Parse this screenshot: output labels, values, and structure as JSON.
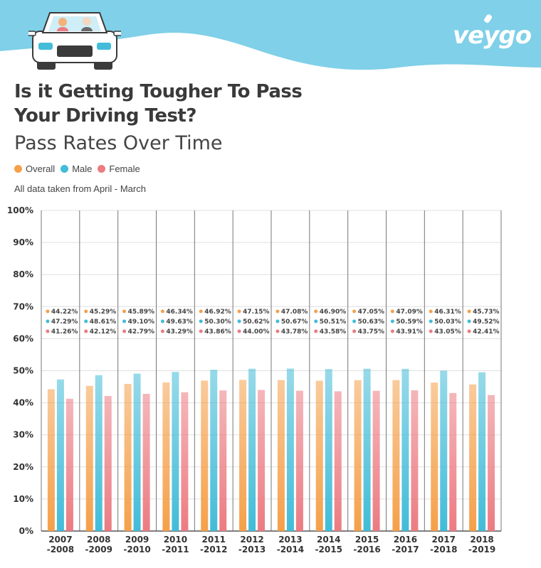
{
  "brand": {
    "logo_text": "veygo"
  },
  "header": {
    "title_line1": "Is it Getting Tougher To Pass",
    "title_line2": "Your Driving Test?",
    "subtitle": "Pass Rates Over Time",
    "note": "All data taken from April - March"
  },
  "legend": [
    {
      "label": "Overall",
      "color": "#f5a04a"
    },
    {
      "label": "Male",
      "color": "#42bcd8"
    },
    {
      "label": "Female",
      "color": "#ec7b82"
    }
  ],
  "colors": {
    "header_wave": "#7fd0e8",
    "header_wave_light": "#a6e0f0",
    "overall": "#f5a04a",
    "male": "#42bcd8",
    "female": "#ec7b82",
    "grid": "#e0e0e0",
    "column_divider": "#777777"
  },
  "chart_data": {
    "type": "bar",
    "categories": [
      [
        "2007",
        "-2008"
      ],
      [
        "2008",
        "-2009"
      ],
      [
        "2009",
        "-2010"
      ],
      [
        "2010",
        "-2011"
      ],
      [
        "2011",
        "-2012"
      ],
      [
        "2012",
        "-2013"
      ],
      [
        "2013",
        "-2014"
      ],
      [
        "2014",
        "-2015"
      ],
      [
        "2015",
        "-2016"
      ],
      [
        "2016",
        "-2017"
      ],
      [
        "2017",
        "-2018"
      ],
      [
        "2018",
        "-2019"
      ]
    ],
    "series": [
      {
        "name": "Overall",
        "values": [
          44.22,
          45.29,
          45.89,
          46.34,
          46.92,
          47.15,
          47.08,
          46.9,
          47.05,
          47.09,
          46.31,
          45.73
        ]
      },
      {
        "name": "Male",
        "values": [
          47.29,
          48.61,
          49.1,
          49.63,
          50.3,
          50.62,
          50.67,
          50.51,
          50.63,
          50.59,
          50.03,
          49.52
        ]
      },
      {
        "name": "Female",
        "values": [
          41.26,
          42.12,
          42.79,
          43.29,
          43.86,
          44.0,
          43.78,
          43.58,
          43.75,
          43.91,
          43.05,
          42.41
        ]
      }
    ],
    "ylim": [
      0,
      100
    ],
    "yticks": [
      "0%",
      "10%",
      "20%",
      "30%",
      "40%",
      "50%",
      "60%",
      "70%",
      "80%",
      "90%",
      "100%"
    ],
    "value_suffix": "%",
    "grid": true,
    "legend_position": "top-left"
  }
}
